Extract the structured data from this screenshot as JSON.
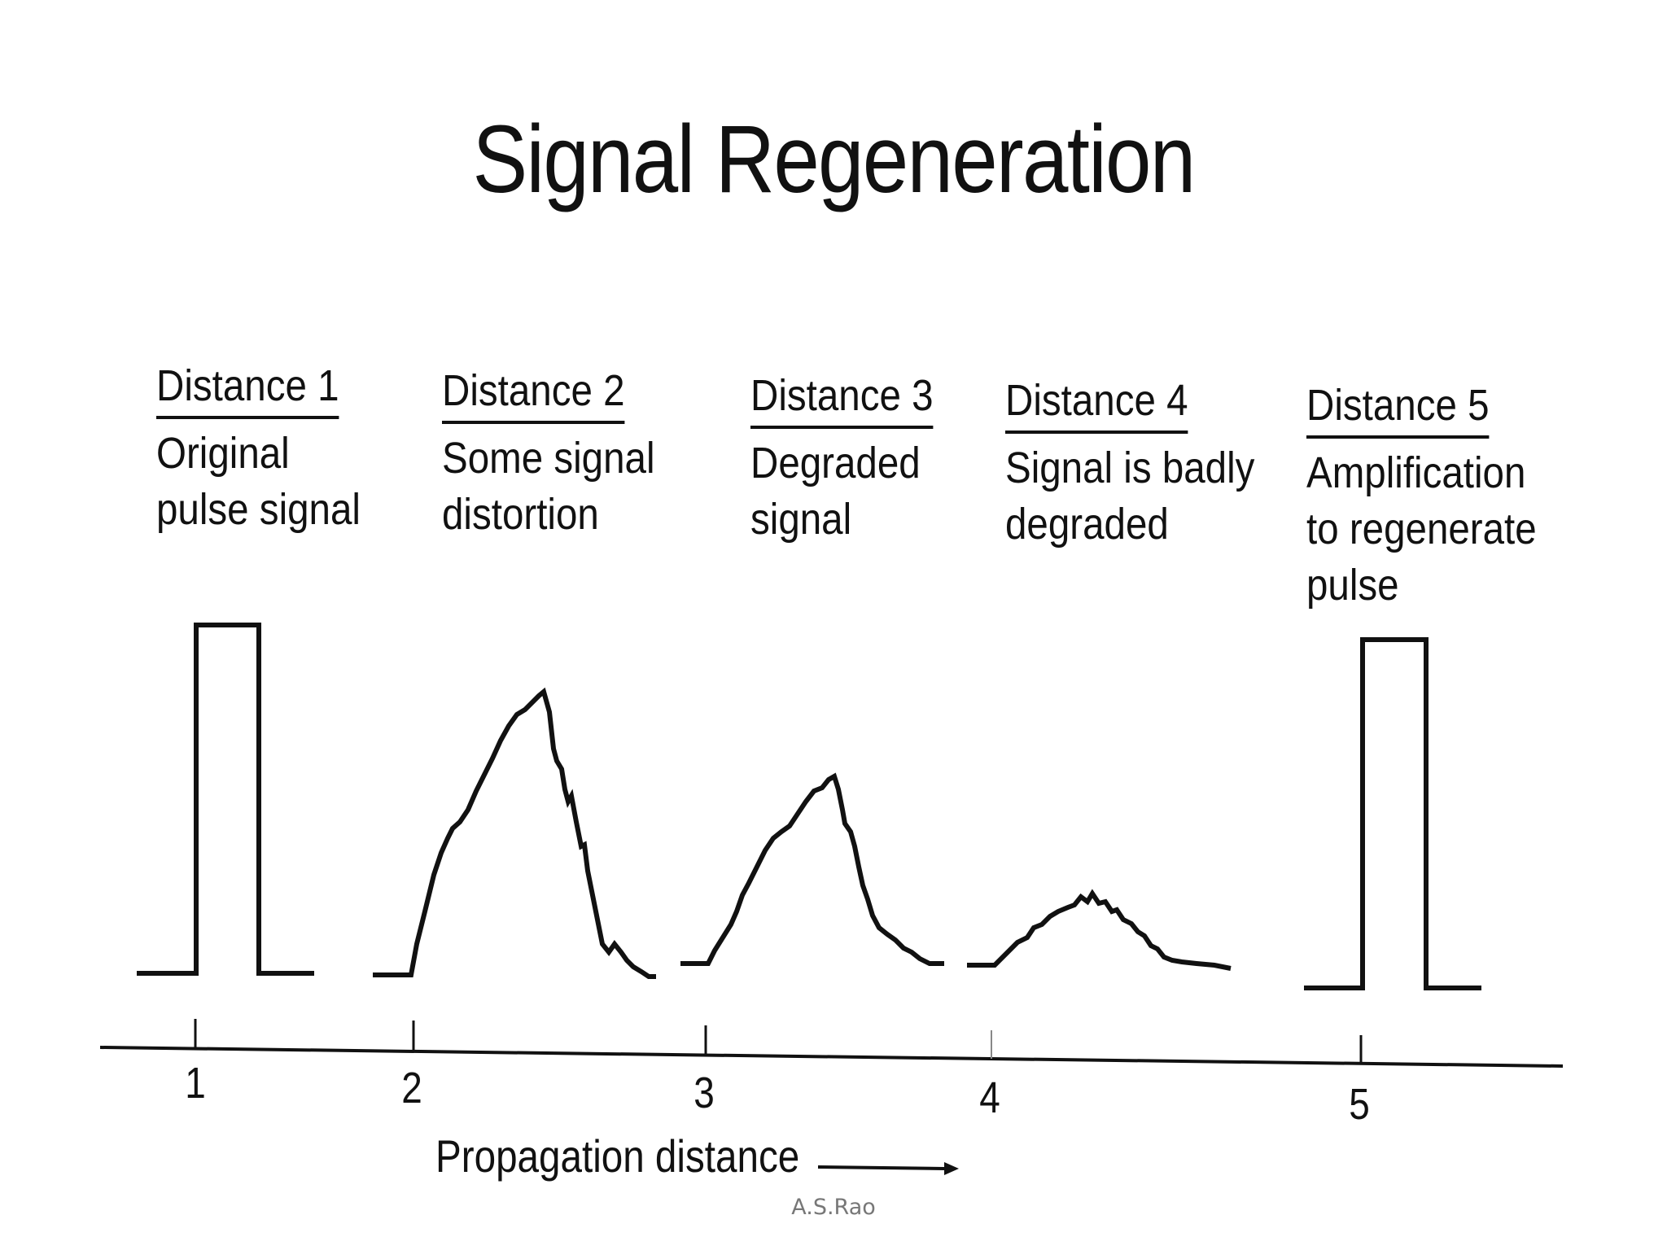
{
  "title": "Signal Regeneration",
  "stages": [
    {
      "heading": "Distance 1",
      "lines": [
        "Original",
        "pulse signal"
      ]
    },
    {
      "heading": "Distance 2",
      "lines": [
        "Some signal",
        "distortion"
      ]
    },
    {
      "heading": "Distance 3",
      "lines": [
        "Degraded",
        "signal"
      ]
    },
    {
      "heading": "Distance 4",
      "lines": [
        "Signal is badly",
        "degraded"
      ]
    },
    {
      "heading": "Distance 5",
      "lines": [
        "Amplification",
        "to regenerate",
        "pulse"
      ]
    }
  ],
  "axis": {
    "label": "Propagation distance",
    "ticks": [
      "1",
      "2",
      "3",
      "4",
      "5"
    ],
    "arrow_icon": "right-arrow-icon"
  },
  "footer": {
    "credit": "A.S.Rao"
  },
  "colors": {
    "ink": "#111111",
    "credit": "#777777",
    "background": "#ffffff"
  }
}
